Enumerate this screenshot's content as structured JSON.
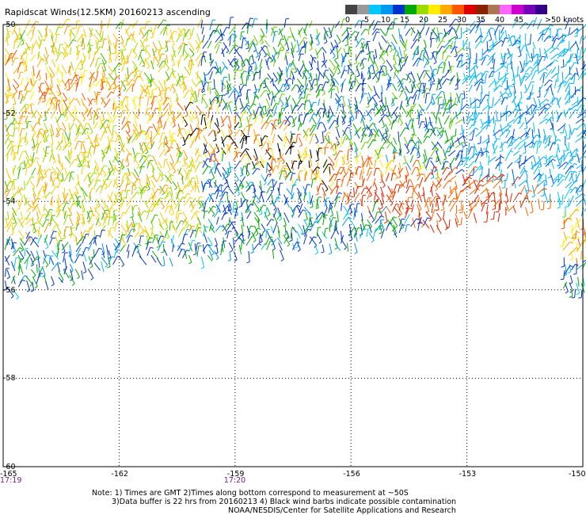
{
  "title": "Rapidscat Winds(12.5KM) 20160213 ascending",
  "legend": {
    "labels": [
      "0",
      "5",
      "10",
      "15",
      "20",
      "25",
      "30",
      "35",
      "40",
      "45",
      ">50 knots"
    ],
    "colors": [
      "#444444",
      "#999999",
      "#00c8ff",
      "#0099ee",
      "#0033cc",
      "#00aa00",
      "#99dd00",
      "#ffee00",
      "#ffaa00",
      "#ff5500",
      "#dd0000",
      "#882200",
      "#aa7755",
      "#ff66ff",
      "#cc00cc",
      "#7700bb",
      "#330088"
    ]
  },
  "axes": {
    "lon_ticks": [
      "-165",
      "-162",
      "-159",
      "-156",
      "-153",
      "-150"
    ],
    "lat_ticks": [
      "-50",
      "-52",
      "-54",
      "-56",
      "-58",
      "-60"
    ],
    "time_ticks": [
      {
        "lon": "-165",
        "label": "17:19"
      },
      {
        "lon": "-159",
        "label": "17:20"
      }
    ]
  },
  "notes": [
    "Note: 1) Times are GMT 2)Times along bottom correspond to measurement at ~50S",
    "3)Data buffer is 22 hrs from 20160213 4) Black wind barbs indicate possible contamination",
    "NOAA/NESDIS/Center for Satellite Applications and Research"
  ]
}
